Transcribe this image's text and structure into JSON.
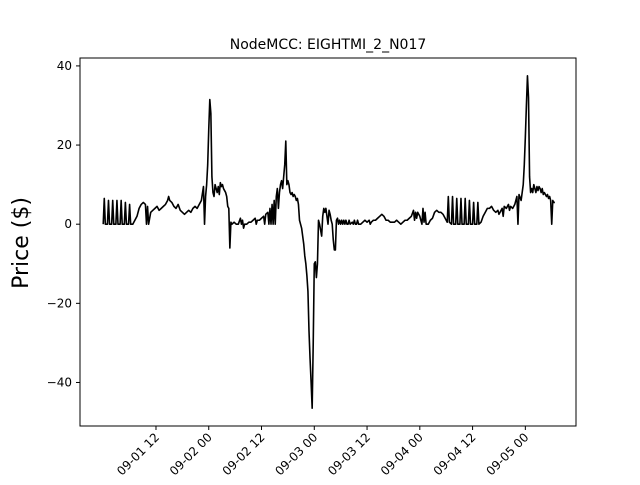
{
  "chart_data": {
    "type": "line",
    "title": "NodeMCC: EIGHTMI_2_N017",
    "xlabel": "",
    "ylabel": "Price ($)",
    "ylim": [
      -51,
      42
    ],
    "xlim": [
      0.78,
      5.48
    ],
    "grid": false,
    "line_color": "#000000",
    "y_ticks": [
      -40,
      -20,
      0,
      20,
      40
    ],
    "x_ticks": [
      {
        "value": 1.5,
        "label": "09-01 12"
      },
      {
        "value": 2.0,
        "label": "09-02 00"
      },
      {
        "value": 2.5,
        "label": "09-02 12"
      },
      {
        "value": 3.0,
        "label": "09-03 00"
      },
      {
        "value": 3.5,
        "label": "09-03 12"
      },
      {
        "value": 4.0,
        "label": "09-04 00"
      },
      {
        "value": 4.5,
        "label": "09-04 12"
      },
      {
        "value": 5.0,
        "label": "09-05 00"
      }
    ],
    "x_unit_note": "days",
    "points": [
      [
        1.0,
        0
      ],
      [
        1.01,
        6.5
      ],
      [
        1.02,
        0
      ],
      [
        1.04,
        0
      ],
      [
        1.05,
        6
      ],
      [
        1.06,
        0
      ],
      [
        1.08,
        0
      ],
      [
        1.09,
        6
      ],
      [
        1.1,
        0
      ],
      [
        1.12,
        0
      ],
      [
        1.13,
        6
      ],
      [
        1.14,
        0
      ],
      [
        1.16,
        0
      ],
      [
        1.17,
        6
      ],
      [
        1.18,
        0
      ],
      [
        1.2,
        0
      ],
      [
        1.21,
        5.5
      ],
      [
        1.22,
        0
      ],
      [
        1.24,
        0
      ],
      [
        1.25,
        5
      ],
      [
        1.26,
        0
      ],
      [
        1.28,
        0
      ],
      [
        1.3,
        1
      ],
      [
        1.32,
        2
      ],
      [
        1.34,
        4
      ],
      [
        1.36,
        5
      ],
      [
        1.38,
        5.5
      ],
      [
        1.4,
        5
      ],
      [
        1.41,
        0
      ],
      [
        1.42,
        4.5
      ],
      [
        1.43,
        0
      ],
      [
        1.45,
        3
      ],
      [
        1.47,
        3.5
      ],
      [
        1.49,
        4
      ],
      [
        1.51,
        4.5
      ],
      [
        1.53,
        3.5
      ],
      [
        1.55,
        4
      ],
      [
        1.57,
        4.5
      ],
      [
        1.59,
        5
      ],
      [
        1.61,
        6
      ],
      [
        1.62,
        7
      ],
      [
        1.63,
        6
      ],
      [
        1.65,
        5.5
      ],
      [
        1.67,
        4.5
      ],
      [
        1.69,
        4
      ],
      [
        1.71,
        5
      ],
      [
        1.73,
        3.5
      ],
      [
        1.75,
        3
      ],
      [
        1.77,
        2.5
      ],
      [
        1.79,
        3
      ],
      [
        1.81,
        3.5
      ],
      [
        1.83,
        3
      ],
      [
        1.85,
        4
      ],
      [
        1.87,
        4.5
      ],
      [
        1.89,
        4
      ],
      [
        1.91,
        5
      ],
      [
        1.93,
        6
      ],
      [
        1.95,
        9.5
      ],
      [
        1.96,
        0
      ],
      [
        1.97,
        7
      ],
      [
        1.98,
        10
      ],
      [
        1.99,
        15
      ],
      [
        2.0,
        24
      ],
      [
        2.01,
        31.5
      ],
      [
        2.02,
        28
      ],
      [
        2.03,
        12
      ],
      [
        2.04,
        8
      ],
      [
        2.05,
        7
      ],
      [
        2.06,
        10
      ],
      [
        2.07,
        9
      ],
      [
        2.08,
        8
      ],
      [
        2.09,
        9.5
      ],
      [
        2.1,
        7.5
      ],
      [
        2.11,
        10.5
      ],
      [
        2.12,
        9.5
      ],
      [
        2.13,
        10
      ],
      [
        2.14,
        9
      ],
      [
        2.15,
        8.5
      ],
      [
        2.16,
        8
      ],
      [
        2.17,
        7
      ],
      [
        2.18,
        4.5
      ],
      [
        2.19,
        4
      ],
      [
        2.2,
        -6
      ],
      [
        2.21,
        0.5
      ],
      [
        2.22,
        0
      ],
      [
        2.24,
        0.5
      ],
      [
        2.26,
        0
      ],
      [
        2.28,
        0
      ],
      [
        2.3,
        1.5
      ],
      [
        2.31,
        0
      ],
      [
        2.32,
        1
      ],
      [
        2.33,
        -1
      ],
      [
        2.34,
        0
      ],
      [
        2.36,
        0
      ],
      [
        2.38,
        0.5
      ],
      [
        2.4,
        0.5
      ],
      [
        2.42,
        1
      ],
      [
        2.44,
        1.5
      ],
      [
        2.45,
        0
      ],
      [
        2.46,
        1
      ],
      [
        2.48,
        1
      ],
      [
        2.5,
        1.5
      ],
      [
        2.52,
        2
      ],
      [
        2.53,
        0
      ],
      [
        2.54,
        2.5
      ],
      [
        2.56,
        3
      ],
      [
        2.57,
        0
      ],
      [
        2.58,
        4
      ],
      [
        2.59,
        0
      ],
      [
        2.6,
        5
      ],
      [
        2.61,
        0
      ],
      [
        2.62,
        6
      ],
      [
        2.63,
        0
      ],
      [
        2.64,
        7
      ],
      [
        2.65,
        9
      ],
      [
        2.66,
        4
      ],
      [
        2.67,
        8
      ],
      [
        2.68,
        10
      ],
      [
        2.69,
        11
      ],
      [
        2.7,
        9
      ],
      [
        2.71,
        12
      ],
      [
        2.72,
        15
      ],
      [
        2.73,
        21
      ],
      [
        2.74,
        10
      ],
      [
        2.75,
        11
      ],
      [
        2.76,
        10
      ],
      [
        2.77,
        8
      ],
      [
        2.78,
        7.5
      ],
      [
        2.79,
        8
      ],
      [
        2.8,
        7
      ],
      [
        2.81,
        7.5
      ],
      [
        2.82,
        7
      ],
      [
        2.83,
        6
      ],
      [
        2.84,
        6.5
      ],
      [
        2.85,
        5
      ],
      [
        2.86,
        1
      ],
      [
        2.87,
        0
      ],
      [
        2.88,
        -1
      ],
      [
        2.89,
        -3
      ],
      [
        2.9,
        -5
      ],
      [
        2.91,
        -8
      ],
      [
        2.92,
        -10
      ],
      [
        2.93,
        -13
      ],
      [
        2.94,
        -17
      ],
      [
        2.95,
        -27
      ],
      [
        2.96,
        -34
      ],
      [
        2.97,
        -40
      ],
      [
        2.98,
        -46.5
      ],
      [
        2.99,
        -30
      ],
      [
        3.0,
        -10
      ],
      [
        3.01,
        -9.5
      ],
      [
        3.02,
        -13.5
      ],
      [
        3.03,
        -10
      ],
      [
        3.04,
        1
      ],
      [
        3.05,
        0
      ],
      [
        3.06,
        -1.5
      ],
      [
        3.07,
        -3
      ],
      [
        3.08,
        2
      ],
      [
        3.09,
        4
      ],
      [
        3.1,
        3
      ],
      [
        3.11,
        4
      ],
      [
        3.12,
        2
      ],
      [
        3.13,
        0
      ],
      [
        3.14,
        3.5
      ],
      [
        3.15,
        2.5
      ],
      [
        3.16,
        1
      ],
      [
        3.17,
        0
      ],
      [
        3.18,
        -4
      ],
      [
        3.19,
        -6.5
      ],
      [
        3.2,
        -6.5
      ],
      [
        3.21,
        1
      ],
      [
        3.22,
        1.5
      ],
      [
        3.23,
        0
      ],
      [
        3.24,
        1
      ],
      [
        3.25,
        0
      ],
      [
        3.26,
        1
      ],
      [
        3.27,
        0
      ],
      [
        3.28,
        1
      ],
      [
        3.29,
        0
      ],
      [
        3.3,
        1
      ],
      [
        3.31,
        0
      ],
      [
        3.32,
        0
      ],
      [
        3.33,
        1
      ],
      [
        3.34,
        0
      ],
      [
        3.36,
        0.5
      ],
      [
        3.37,
        0
      ],
      [
        3.38,
        1
      ],
      [
        3.39,
        0
      ],
      [
        3.4,
        0
      ],
      [
        3.41,
        1
      ],
      [
        3.42,
        0
      ],
      [
        3.44,
        0
      ],
      [
        3.46,
        0.5
      ],
      [
        3.48,
        1
      ],
      [
        3.5,
        0.5
      ],
      [
        3.52,
        1
      ],
      [
        3.53,
        0
      ],
      [
        3.54,
        0.5
      ],
      [
        3.56,
        1
      ],
      [
        3.58,
        1
      ],
      [
        3.6,
        1.5
      ],
      [
        3.62,
        2
      ],
      [
        3.64,
        2.5
      ],
      [
        3.66,
        2
      ],
      [
        3.68,
        1
      ],
      [
        3.7,
        1
      ],
      [
        3.72,
        0.5
      ],
      [
        3.74,
        0.5
      ],
      [
        3.76,
        0.5
      ],
      [
        3.78,
        1
      ],
      [
        3.8,
        0.5
      ],
      [
        3.82,
        0
      ],
      [
        3.84,
        0.5
      ],
      [
        3.86,
        1
      ],
      [
        3.88,
        1
      ],
      [
        3.9,
        1.5
      ],
      [
        3.92,
        2
      ],
      [
        3.94,
        3.5
      ],
      [
        3.95,
        1
      ],
      [
        3.96,
        3
      ],
      [
        3.97,
        1.5
      ],
      [
        3.98,
        3
      ],
      [
        4.0,
        2
      ],
      [
        4.01,
        1
      ],
      [
        4.02,
        0
      ],
      [
        4.03,
        4
      ],
      [
        4.04,
        0.5
      ],
      [
        4.05,
        3
      ],
      [
        4.06,
        0
      ],
      [
        4.08,
        0
      ],
      [
        4.1,
        1
      ],
      [
        4.12,
        1.5
      ],
      [
        4.14,
        3
      ],
      [
        4.16,
        3.5
      ],
      [
        4.18,
        3
      ],
      [
        4.2,
        3
      ],
      [
        4.22,
        2.5
      ],
      [
        4.24,
        1.5
      ],
      [
        4.26,
        0.5
      ],
      [
        4.27,
        7
      ],
      [
        4.28,
        0.5
      ],
      [
        4.3,
        0
      ],
      [
        4.31,
        7
      ],
      [
        4.32,
        0
      ],
      [
        4.34,
        0
      ],
      [
        4.35,
        6.5
      ],
      [
        4.36,
        0
      ],
      [
        4.38,
        0
      ],
      [
        4.39,
        6.5
      ],
      [
        4.4,
        0
      ],
      [
        4.42,
        0
      ],
      [
        4.43,
        6.5
      ],
      [
        4.44,
        0
      ],
      [
        4.46,
        0
      ],
      [
        4.47,
        6
      ],
      [
        4.48,
        0
      ],
      [
        4.5,
        0
      ],
      [
        4.51,
        5.5
      ],
      [
        4.52,
        0
      ],
      [
        4.54,
        0
      ],
      [
        4.55,
        5.5
      ],
      [
        4.56,
        0
      ],
      [
        4.58,
        0.5
      ],
      [
        4.6,
        2
      ],
      [
        4.62,
        3
      ],
      [
        4.64,
        4
      ],
      [
        4.66,
        4
      ],
      [
        4.68,
        4.5
      ],
      [
        4.7,
        3.5
      ],
      [
        4.72,
        3
      ],
      [
        4.74,
        3.5
      ],
      [
        4.75,
        2.5
      ],
      [
        4.76,
        3
      ],
      [
        4.78,
        4
      ],
      [
        4.79,
        2
      ],
      [
        4.8,
        4.5
      ],
      [
        4.82,
        4
      ],
      [
        4.84,
        5
      ],
      [
        4.85,
        3.5
      ],
      [
        4.86,
        4.5
      ],
      [
        4.88,
        4
      ],
      [
        4.9,
        5
      ],
      [
        4.92,
        7
      ],
      [
        4.93,
        0
      ],
      [
        4.94,
        7.5
      ],
      [
        4.96,
        6
      ],
      [
        4.98,
        10
      ],
      [
        4.99,
        15
      ],
      [
        5.0,
        22
      ],
      [
        5.01,
        30
      ],
      [
        5.02,
        37.5
      ],
      [
        5.03,
        32
      ],
      [
        5.04,
        12
      ],
      [
        5.05,
        8
      ],
      [
        5.06,
        9
      ],
      [
        5.07,
        8
      ],
      [
        5.08,
        10
      ],
      [
        5.09,
        9
      ],
      [
        5.1,
        8
      ],
      [
        5.11,
        9.5
      ],
      [
        5.12,
        8.5
      ],
      [
        5.13,
        9.5
      ],
      [
        5.14,
        9
      ],
      [
        5.15,
        8
      ],
      [
        5.16,
        9
      ],
      [
        5.17,
        7.5
      ],
      [
        5.18,
        8
      ],
      [
        5.19,
        7.5
      ],
      [
        5.2,
        7
      ],
      [
        5.21,
        7.5
      ],
      [
        5.22,
        6.5
      ],
      [
        5.23,
        7
      ],
      [
        5.24,
        6
      ],
      [
        5.25,
        0
      ],
      [
        5.26,
        6
      ],
      [
        5.27,
        5.5
      ],
      [
        5.28,
        5.5
      ]
    ]
  }
}
